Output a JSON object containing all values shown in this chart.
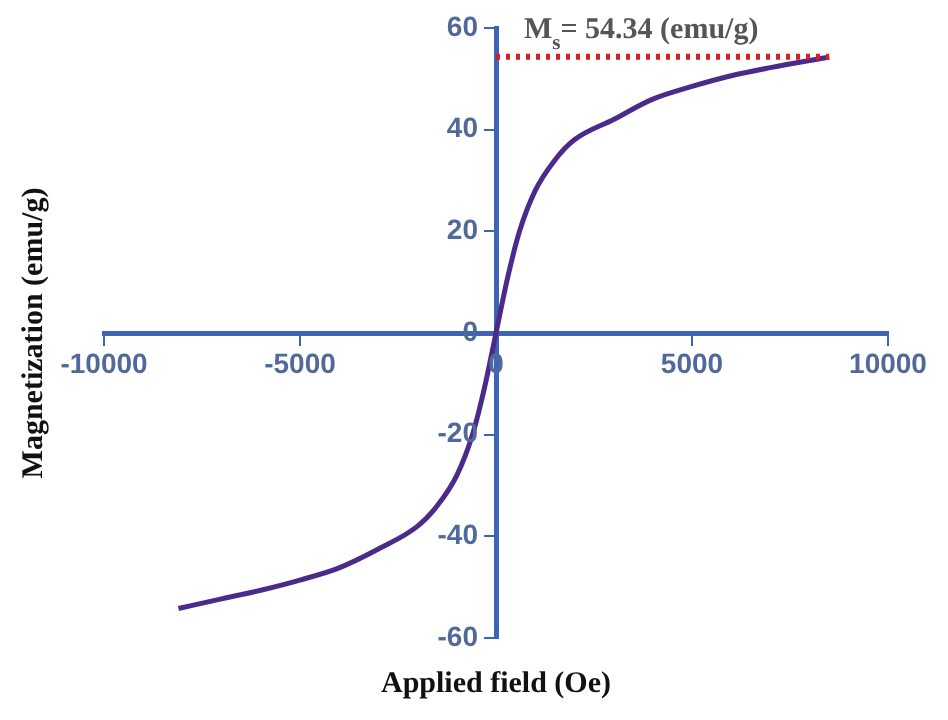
{
  "chart_data": {
    "type": "line",
    "xlabel": "Applied field (Oe)",
    "ylabel": "Magnetization (emu/g)",
    "x": [
      -8100,
      -7000,
      -6000,
      -5000,
      -4000,
      -3000,
      -2000,
      -1500,
      -1000,
      -600,
      -300,
      0,
      300,
      600,
      1000,
      1500,
      2000,
      3000,
      4000,
      5000,
      6000,
      7000,
      8500
    ],
    "series": [
      {
        "color": "#4b2a8c",
        "values": [
          -54.2,
          -52.3,
          -50.6,
          -48.6,
          -46.2,
          -42.5,
          -38,
          -34,
          -28,
          -20,
          -11,
          0,
          11,
          20,
          28,
          34,
          38,
          42,
          46,
          48.5,
          50.6,
          52.2,
          54.3
        ]
      }
    ],
    "xlim": [
      -10000,
      10000
    ],
    "xticks": [
      -10000,
      -5000,
      0,
      5000,
      10000
    ],
    "ylim": [
      -60,
      60
    ],
    "yticks": [
      -60,
      -40,
      -20,
      0,
      20,
      40,
      60
    ],
    "ref_lines": [
      {
        "axis": "y",
        "value": 54.34,
        "label": "M$_{s}$= 54.34 (emu/g)",
        "color": "#d42020",
        "line_style": "dotted"
      }
    ],
    "marker": "none",
    "line_style": "solid",
    "grid": false,
    "legend": false
  }
}
